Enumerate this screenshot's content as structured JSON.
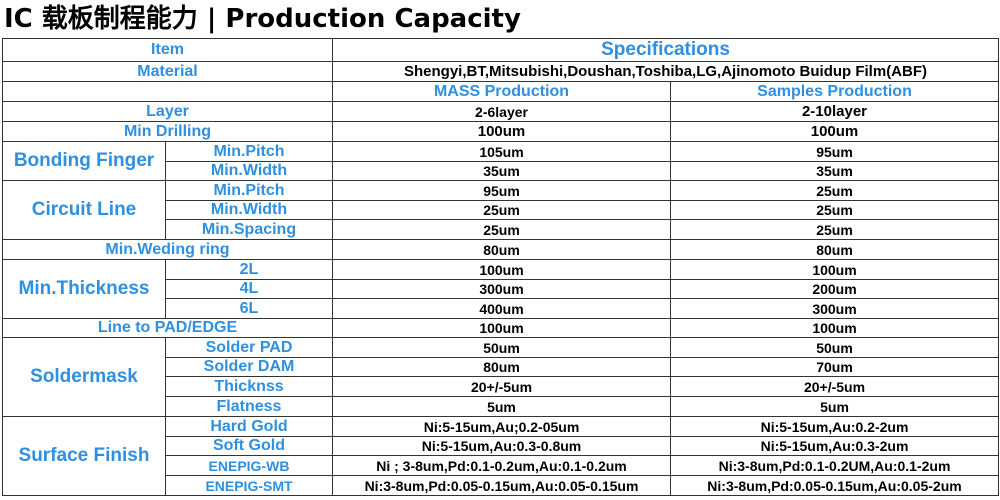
{
  "title": "IC 载板制程能力 | Production Capacity",
  "header": {
    "item": "Item",
    "specifications": "Specifications"
  },
  "material": {
    "label": "Material",
    "value": "Shengyi,BT,Mitsubishi,Doushan,Toshiba,LG,Ajinomoto Buidup Film(ABF)"
  },
  "columns": {
    "mass": "MASS Production",
    "samples": "Samples Production"
  },
  "rows": {
    "layer": {
      "label": "Layer",
      "mass": "2-6layer",
      "samples": "2-10layer"
    },
    "min_drilling": {
      "label": "Min Drilling",
      "mass": "100um",
      "samples": "100um"
    },
    "bonding_finger": {
      "label": "Bonding Finger",
      "pitch": {
        "label": "Min.Pitch",
        "mass": "105um",
        "samples": "95um"
      },
      "width": {
        "label": "Min.Width",
        "mass": "35um",
        "samples": "35um"
      }
    },
    "circuit_line": {
      "label": "Circuit Line",
      "pitch": {
        "label": "Min.Pitch",
        "mass": "95um",
        "samples": "25um"
      },
      "width": {
        "label": "Min.Width",
        "mass": "25um",
        "samples": "25um"
      },
      "spacing": {
        "label": "Min.Spacing",
        "mass": "25um",
        "samples": "25um"
      }
    },
    "weding_ring": {
      "label": "Min.Weding ring",
      "mass": "80um",
      "samples": "80um"
    },
    "min_thickness": {
      "label": "Min.Thickness",
      "l2": {
        "label": "2L",
        "mass": "100um",
        "samples": "100um"
      },
      "l4": {
        "label": "4L",
        "mass": "300um",
        "samples": "200um"
      },
      "l6": {
        "label": "6L",
        "mass": "400um",
        "samples": "300um"
      }
    },
    "line_to_pad": {
      "label": "Line to PAD/EDGE",
      "mass": "100um",
      "samples": "100um"
    },
    "soldermask": {
      "label": "Soldermask",
      "pad": {
        "label": "Solder PAD",
        "mass": "50um",
        "samples": "50um"
      },
      "dam": {
        "label": "Solder DAM",
        "mass": "80um",
        "samples": "70um"
      },
      "thickness": {
        "label": "Thicknss",
        "mass": "20+/-5um",
        "samples": "20+/-5um"
      },
      "flatness": {
        "label": "Flatness",
        "mass": "5um",
        "samples": "5um"
      }
    },
    "surface_finish": {
      "label": "Surface Finish",
      "hard_gold": {
        "label": "Hard Gold",
        "mass": "Ni:5-15um,Au;0.2-05um",
        "samples": "Ni:5-15um,Au:0.2-2um"
      },
      "soft_gold": {
        "label": "Soft Gold",
        "mass": "Ni:5-15um,Au:0.3-0.8um",
        "samples": "Ni:5-15um,Au:0.3-2um"
      },
      "enepig_wb": {
        "label": "ENEPIG-WB",
        "mass": "Ni ; 3-8um,Pd:0.1-0.2um,Au:0.1-0.2um",
        "samples": "Ni:3-8um,Pd:0.1-0.2UM,Au:0.1-2um"
      },
      "enepig_smt": {
        "label": "ENEPIG-SMT",
        "mass": "Ni:3-8um,Pd:0.05-0.15um,Au:0.05-0.15um",
        "samples": "Ni:3-8um,Pd:0.05-0.15um,Au:0.05-2um"
      }
    }
  },
  "colors": {
    "label_blue": "#2f8fe0",
    "text": "#000000",
    "border": "#333333"
  }
}
